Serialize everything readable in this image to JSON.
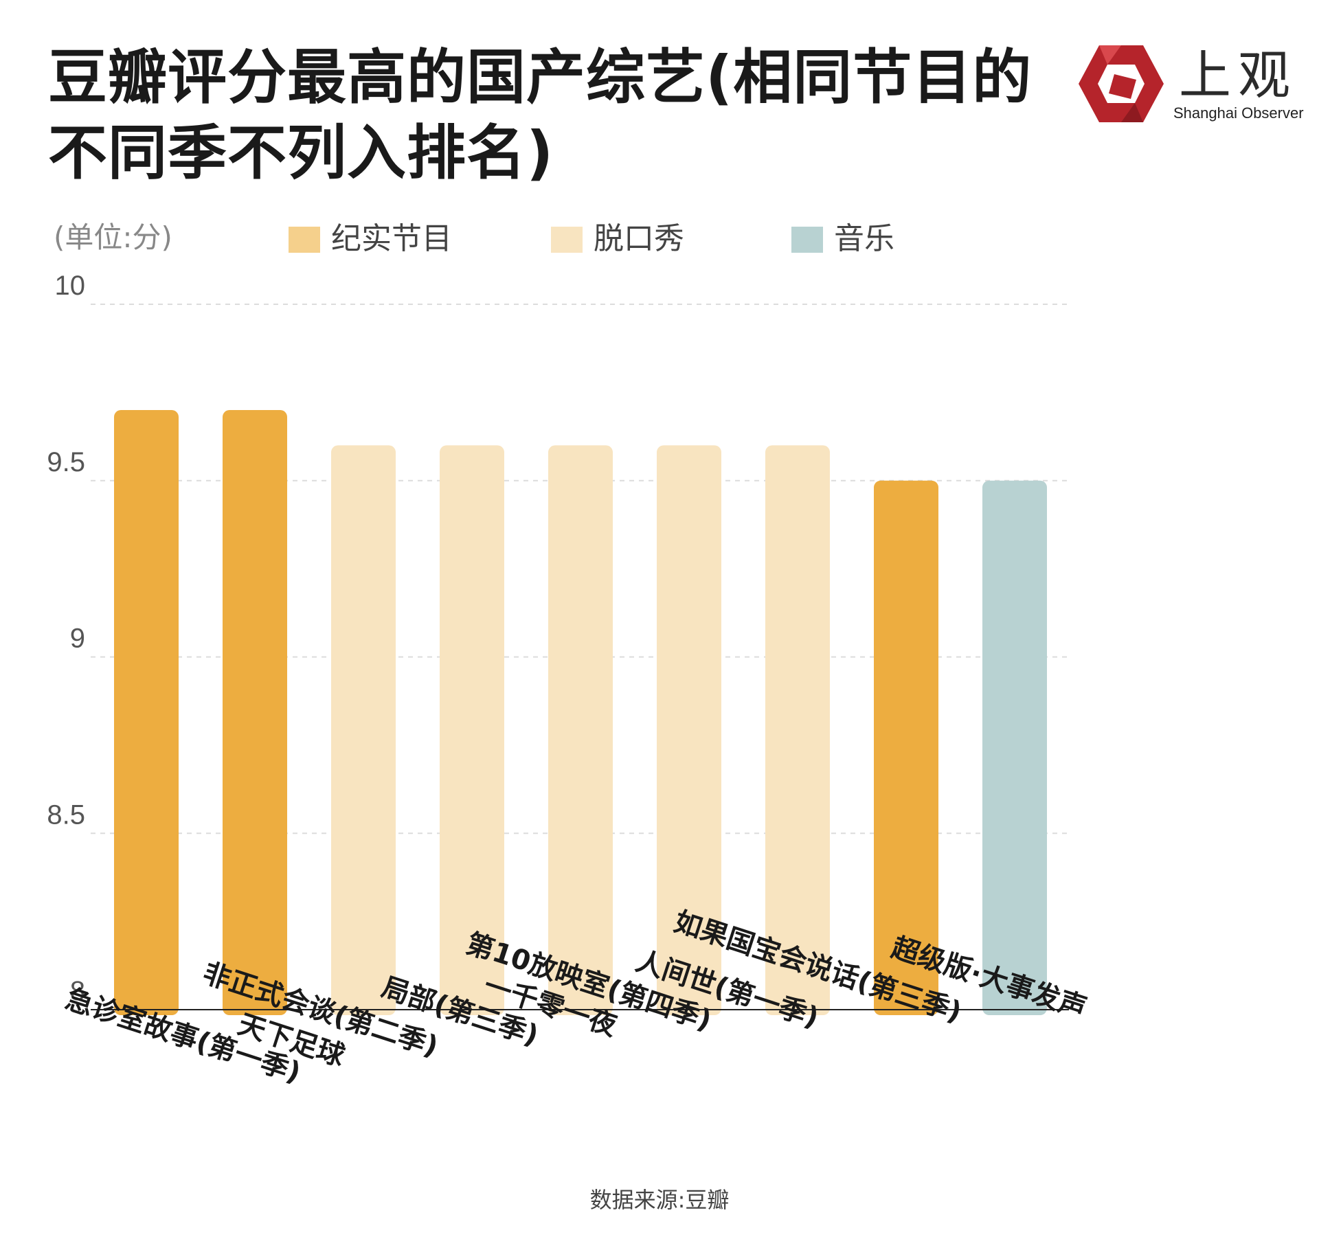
{
  "title": "豆瓣评分最高的国产综艺(相同节目的不同季不列入排名)",
  "logo": {
    "name": "上观",
    "subtitle": "Shanghai Observer",
    "color": "#b5242b"
  },
  "unit_label": "(单位:分)",
  "legend": [
    {
      "label": "纪实节目",
      "color": "#f5d08c"
    },
    {
      "label": "脱口秀",
      "color": "#f8e4c0"
    },
    {
      "label": "音乐",
      "color": "#b8d2d2"
    }
  ],
  "source": "数据来源:豆瓣",
  "chart_data": {
    "type": "bar",
    "categories": [
      "急诊室故事(第一季)",
      "天下足球",
      "非正式会谈(第二季)",
      "局部(第三季)",
      "一千零一夜",
      "第10放映室(第四季)",
      "人间世(第一季)",
      "如果国宝会说话(第三季)",
      "超级版·大事发声"
    ],
    "values": [
      9.7,
      9.7,
      9.6,
      9.6,
      9.6,
      9.6,
      9.6,
      9.5,
      9.5
    ],
    "groups": [
      "纪实节目",
      "纪实节目",
      "脱口秀",
      "脱口秀",
      "脱口秀",
      "脱口秀",
      "脱口秀",
      "纪实节目",
      "音乐"
    ],
    "bar_colors": [
      "#edad40",
      "#edad40",
      "#f8e4c0",
      "#f8e4c0",
      "#f8e4c0",
      "#f8e4c0",
      "#f8e4c0",
      "#edad40",
      "#b8d2d2"
    ],
    "ylim": [
      8,
      10
    ],
    "yticks": [
      8,
      8.5,
      9,
      9.5,
      10
    ],
    "ytick_labels": [
      "8",
      "8.5",
      "9",
      "9.5",
      "10"
    ],
    "grid": true,
    "legend_position": "top"
  }
}
